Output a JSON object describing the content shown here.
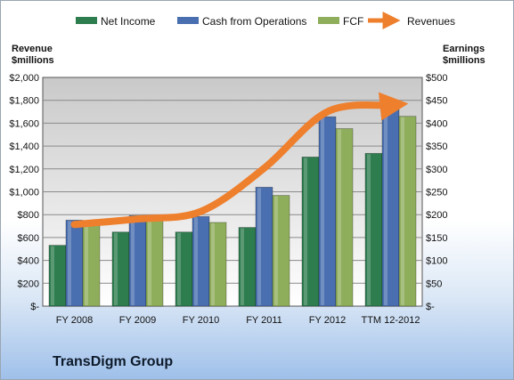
{
  "chart_data": {
    "type": "bar",
    "company": "TransDigm Group",
    "categories": [
      "FY 2008",
      "FY 2009",
      "FY 2010",
      "FY 2011",
      "FY 2012",
      "TTM 12-2012"
    ],
    "series": [
      {
        "name": "Net Income",
        "axis": "right",
        "color": "#2e7d4f",
        "values": [
          133,
          162,
          162,
          172,
          326,
          334
        ]
      },
      {
        "name": "Cash from Operations",
        "axis": "right",
        "color": "#4a6fb0",
        "values": [
          188,
          198,
          196,
          260,
          414,
          444
        ]
      },
      {
        "name": "FCF",
        "axis": "right",
        "color": "#8fae5b",
        "values": [
          183,
          192,
          183,
          242,
          388,
          415
        ]
      }
    ],
    "line_series": {
      "name": "Revenues",
      "axis": "left",
      "color": "#ee7f2d",
      "values": [
        714,
        762,
        828,
        1206,
        1700,
        1756
      ]
    },
    "left_axis": {
      "title_line1": "Revenue",
      "title_line2": "$millions",
      "ylim": [
        0,
        2000
      ],
      "ticks": [
        "$-",
        "$200",
        "$400",
        "$600",
        "$800",
        "$1,000",
        "$1,200",
        "$1,400",
        "$1,600",
        "$1,800",
        "$2,000"
      ]
    },
    "right_axis": {
      "title_line1": "Earnings",
      "title_line2": "$millions",
      "ylim": [
        0,
        500
      ],
      "ticks": [
        "$-",
        "$50",
        "$100",
        "$150",
        "$200",
        "$250",
        "$300",
        "$350",
        "$400",
        "$450",
        "$500"
      ]
    },
    "grid": true,
    "legend": "top"
  }
}
